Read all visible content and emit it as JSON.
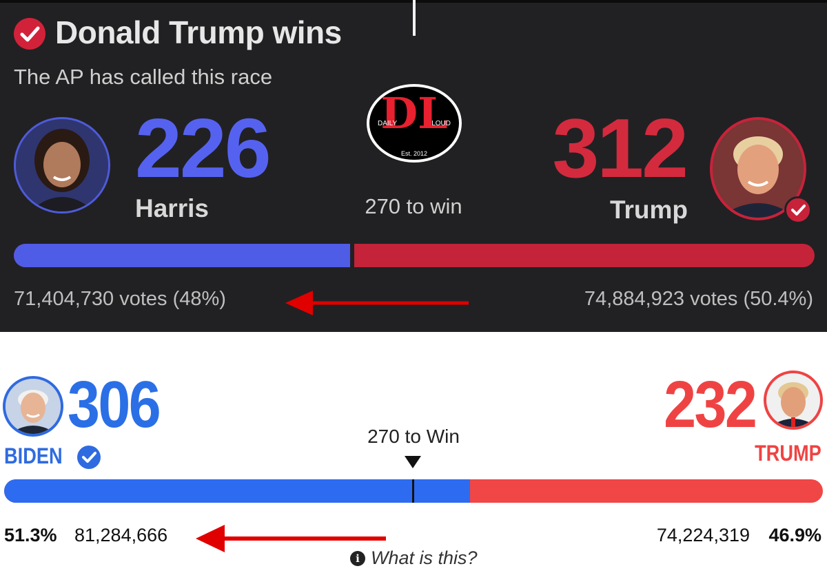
{
  "top": {
    "title": "Donald Trump wins",
    "subtitle": "The AP has called this race",
    "win_threshold": "270 to win",
    "harris": {
      "electoral_votes": "226",
      "name": "Harris",
      "votes": "71,404,730 votes (48%)",
      "share": 0.42
    },
    "trump": {
      "electoral_votes": "312",
      "name": "Trump",
      "votes": "74,884,923 votes (50.4%)"
    },
    "logo": {
      "letters": "DL",
      "left_text": "DAILY",
      "right_text": "LOUD",
      "est": "Est. 2012"
    },
    "colors": {
      "background": "#212123",
      "blue": "#4f5ce6",
      "red": "#c42339"
    }
  },
  "bottom": {
    "win_threshold": "270 to Win",
    "biden": {
      "electoral_votes": "306",
      "name": "BIDEN",
      "pct": "51.3%",
      "votes": "81,284,666",
      "share": 0.569
    },
    "trump": {
      "electoral_votes": "232",
      "name": "TRUMP",
      "pct": "46.9%",
      "votes": "74,224,319"
    },
    "info": "What is this?",
    "colors": {
      "background": "#ffffff",
      "blue": "#2d6cf0",
      "red": "#f04646"
    }
  },
  "annotations": {
    "arrow_color": "#e00000",
    "arrows": [
      "left-arrow",
      "left-arrow"
    ]
  }
}
